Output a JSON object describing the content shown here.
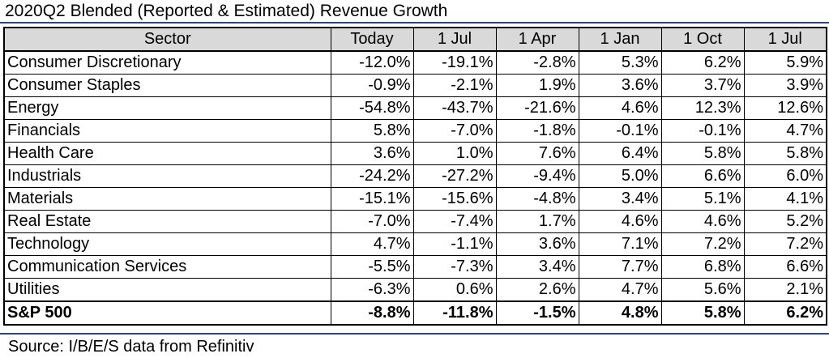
{
  "title": "2020Q2 Blended (Reported & Estimated) Revenue Growth",
  "source": "Source: I/B/E/S data from Refinitiv",
  "colors": {
    "rule": "#2b3f9e",
    "header_fill": "#d9d9d9"
  },
  "chart_data": {
    "type": "table",
    "title": "2020Q2 Blended (Reported & Estimated) Revenue Growth",
    "columns": [
      "Sector",
      "Today",
      "1 Jul",
      "1 Apr",
      "1 Jan",
      "1 Oct",
      "1 Jul"
    ],
    "rows": [
      [
        "Consumer Discretionary",
        "-12.0%",
        "-19.1%",
        "-2.8%",
        "5.3%",
        "6.2%",
        "5.9%"
      ],
      [
        "Consumer Staples",
        "-0.9%",
        "-2.1%",
        "1.9%",
        "3.6%",
        "3.7%",
        "3.9%"
      ],
      [
        "Energy",
        "-54.8%",
        "-43.7%",
        "-21.6%",
        "4.6%",
        "12.3%",
        "12.6%"
      ],
      [
        "Financials",
        "5.8%",
        "-7.0%",
        "-1.8%",
        "-0.1%",
        "-0.1%",
        "4.7%"
      ],
      [
        "Health Care",
        "3.6%",
        "1.0%",
        "7.6%",
        "6.4%",
        "5.8%",
        "5.8%"
      ],
      [
        "Industrials",
        "-24.2%",
        "-27.2%",
        "-9.4%",
        "5.0%",
        "6.6%",
        "6.0%"
      ],
      [
        "Materials",
        "-15.1%",
        "-15.6%",
        "-4.8%",
        "3.4%",
        "5.1%",
        "4.1%"
      ],
      [
        "Real Estate",
        "-7.0%",
        "-7.4%",
        "1.7%",
        "4.6%",
        "4.6%",
        "5.2%"
      ],
      [
        "Technology",
        "4.7%",
        "-1.1%",
        "3.6%",
        "7.1%",
        "7.2%",
        "7.2%"
      ],
      [
        "Communication Services",
        "-5.5%",
        "-7.3%",
        "3.4%",
        "7.7%",
        "6.8%",
        "6.6%"
      ],
      [
        "Utilities",
        "-6.3%",
        "0.6%",
        "2.6%",
        "4.7%",
        "5.6%",
        "2.1%"
      ]
    ],
    "total_row": [
      "S&P 500",
      "-8.8%",
      "-11.8%",
      "-1.5%",
      "4.8%",
      "5.8%",
      "6.2%"
    ]
  }
}
